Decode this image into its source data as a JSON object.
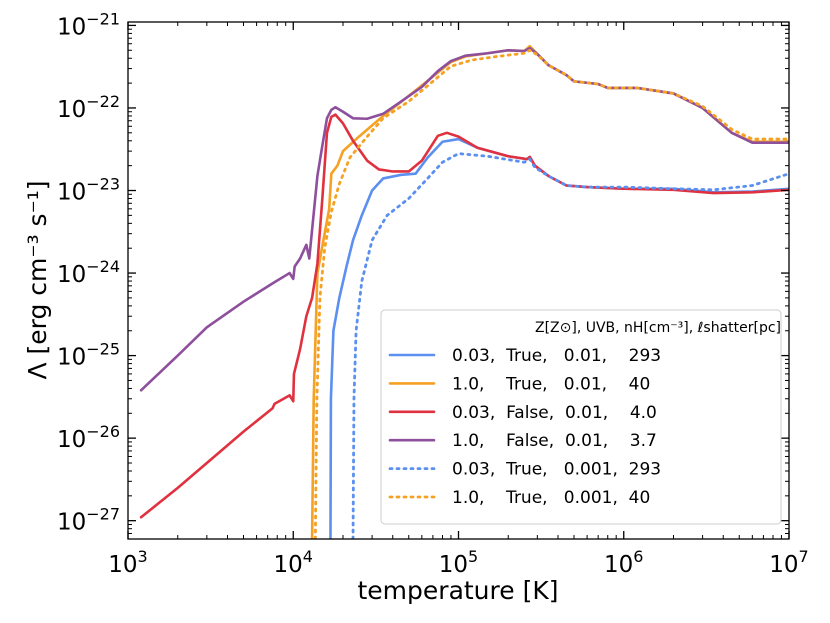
{
  "chart_data": {
    "type": "line",
    "title": "",
    "xlabel": "temperature [K]",
    "ylabel": "Λ [erg cm⁻³ s⁻¹]",
    "xscale": "log",
    "yscale": "log",
    "xlim": [
      1000,
      10000000
    ],
    "ylim": [
      6e-28,
      1.1e-21
    ],
    "x_ticks": [
      {
        "value": 1000,
        "base": "10",
        "exp": "3"
      },
      {
        "value": 10000,
        "base": "10",
        "exp": "4"
      },
      {
        "value": 100000,
        "base": "10",
        "exp": "5"
      },
      {
        "value": 1000000,
        "base": "10",
        "exp": "6"
      },
      {
        "value": 10000000,
        "base": "10",
        "exp": "7"
      }
    ],
    "y_ticks": [
      {
        "value": 1e-27,
        "base": "10",
        "exp": "−27"
      },
      {
        "value": 1e-26,
        "base": "10",
        "exp": "−26"
      },
      {
        "value": 1e-25,
        "base": "10",
        "exp": "−25"
      },
      {
        "value": 1e-24,
        "base": "10",
        "exp": "−24"
      },
      {
        "value": 1e-23,
        "base": "10",
        "exp": "−23"
      },
      {
        "value": 1e-22,
        "base": "10",
        "exp": "−22"
      },
      {
        "value": 1e-21,
        "base": "10",
        "exp": "−21"
      }
    ],
    "legend": {
      "position": "lower-right",
      "title": "Z[Z⊙],  UVB,  nH[cm⁻³], ℓshatter[pc]"
    },
    "series": [
      {
        "name": "0.03,  True,   0.01,    293",
        "color": "#5b8ff0",
        "dash": "solid",
        "points": [
          [
            16800,
            6e-28
          ],
          [
            16900,
            3e-26
          ],
          [
            17500,
            2e-25
          ],
          [
            19000,
            5e-25
          ],
          [
            21000,
            1.2e-24
          ],
          [
            23000,
            2.5e-24
          ],
          [
            26000,
            5e-24
          ],
          [
            30000,
            1e-23
          ],
          [
            35000,
            1.4e-23
          ],
          [
            45000,
            1.55e-23
          ],
          [
            55000,
            1.6e-23
          ],
          [
            65000,
            2.5e-23
          ],
          [
            80000,
            3.9e-23
          ],
          [
            100000,
            4.2e-23
          ],
          [
            130000,
            3.3e-23
          ],
          [
            200000,
            2.6e-23
          ],
          [
            260000,
            2.4e-23
          ],
          [
            270000,
            2.55e-23
          ],
          [
            290000,
            2e-23
          ],
          [
            350000,
            1.5e-23
          ],
          [
            450000,
            1.15e-23
          ],
          [
            600000,
            1.1e-23
          ],
          [
            1000000,
            1.05e-23
          ],
          [
            2000000,
            1.05e-23
          ],
          [
            3500000,
            9.5e-24
          ],
          [
            6000000,
            9.7e-24
          ],
          [
            10000000,
            1.05e-23
          ]
        ]
      },
      {
        "name": "1.0,    True,   0.01,    40",
        "color": "#f5a123",
        "dash": "solid",
        "points": [
          [
            13000,
            6e-28
          ],
          [
            13300,
            3e-26
          ],
          [
            14000,
            1e-24
          ],
          [
            16500,
            6e-24
          ],
          [
            17000,
            1.6e-23
          ],
          [
            18500,
            2e-23
          ],
          [
            20000,
            3e-23
          ],
          [
            25000,
            4.5e-23
          ],
          [
            35000,
            8e-23
          ],
          [
            50000,
            1.4e-22
          ],
          [
            70000,
            2.4e-22
          ],
          [
            90000,
            3.6e-22
          ],
          [
            110000,
            4.2e-22
          ],
          [
            150000,
            4.6e-22
          ],
          [
            200000,
            5e-22
          ],
          [
            250000,
            4.9e-22
          ],
          [
            270000,
            5.6e-22
          ],
          [
            300000,
            4.5e-22
          ],
          [
            350000,
            3.3e-22
          ],
          [
            450000,
            2.5e-22
          ],
          [
            500000,
            2.1e-22
          ],
          [
            700000,
            1.95e-22
          ],
          [
            800000,
            1.75e-22
          ],
          [
            1200000,
            1.75e-22
          ],
          [
            2000000,
            1.5e-22
          ],
          [
            3000000,
            1e-22
          ],
          [
            4500000,
            5e-23
          ],
          [
            6000000,
            3.9e-23
          ],
          [
            10000000,
            3.9e-23
          ]
        ]
      },
      {
        "name": "0.03,  False,  0.01,    4.0",
        "color": "#e0313f",
        "dash": "solid",
        "points": [
          [
            1200,
            1.1e-27
          ],
          [
            2000,
            2.5e-27
          ],
          [
            3000,
            5e-27
          ],
          [
            5000,
            1.2e-26
          ],
          [
            7500,
            2.3e-26
          ],
          [
            7700,
            2.6e-26
          ],
          [
            9500,
            3.3e-26
          ],
          [
            10000,
            2.8e-26
          ],
          [
            10100,
            6e-26
          ],
          [
            11000,
            1.2e-25
          ],
          [
            12000,
            3e-25
          ],
          [
            13000,
            5e-25
          ],
          [
            14000,
            1.3e-24
          ],
          [
            15000,
            8e-24
          ],
          [
            16000,
            5e-23
          ],
          [
            17000,
            7.8e-23
          ],
          [
            18000,
            8.3e-23
          ],
          [
            20000,
            6.5e-23
          ],
          [
            23000,
            4e-23
          ],
          [
            28000,
            2.3e-23
          ],
          [
            33000,
            1.8e-23
          ],
          [
            40000,
            1.7e-23
          ],
          [
            50000,
            1.7e-23
          ],
          [
            60000,
            2.3e-23
          ],
          [
            75000,
            4.6e-23
          ],
          [
            85000,
            5e-23
          ],
          [
            100000,
            4.5e-23
          ],
          [
            130000,
            3.3e-23
          ],
          [
            200000,
            2.6e-23
          ],
          [
            260000,
            2.4e-23
          ],
          [
            270000,
            2.55e-23
          ],
          [
            290000,
            2e-23
          ],
          [
            350000,
            1.5e-23
          ],
          [
            450000,
            1.15e-23
          ],
          [
            600000,
            1.1e-23
          ],
          [
            1000000,
            1.05e-23
          ],
          [
            2000000,
            1.02e-23
          ],
          [
            3500000,
            9.3e-24
          ],
          [
            6000000,
            9.5e-24
          ],
          [
            10000000,
            1.02e-23
          ]
        ]
      },
      {
        "name": "1.0,    False,  0.01,    3.7",
        "color": "#8e4f9c",
        "dash": "solid",
        "points": [
          [
            1200,
            3.8e-26
          ],
          [
            2000,
            1e-25
          ],
          [
            3000,
            2.2e-25
          ],
          [
            5000,
            4.5e-25
          ],
          [
            7500,
            7.5e-25
          ],
          [
            9500,
            1e-24
          ],
          [
            10000,
            8.5e-25
          ],
          [
            10200,
            1.2e-24
          ],
          [
            11000,
            1.5e-24
          ],
          [
            12000,
            2.2e-24
          ],
          [
            12500,
            1.5e-24
          ],
          [
            14000,
            1.5e-23
          ],
          [
            15000,
            3.5e-23
          ],
          [
            16000,
            7.5e-23
          ],
          [
            17000,
            9.5e-23
          ],
          [
            18000,
            1.02e-22
          ],
          [
            20000,
            9e-23
          ],
          [
            23000,
            7.5e-23
          ],
          [
            28000,
            7.4e-23
          ],
          [
            35000,
            8.5e-23
          ],
          [
            45000,
            1.2e-22
          ],
          [
            60000,
            1.8e-22
          ],
          [
            75000,
            2.8e-22
          ],
          [
            90000,
            3.7e-22
          ],
          [
            110000,
            4.3e-22
          ],
          [
            150000,
            4.6e-22
          ],
          [
            200000,
            5e-22
          ],
          [
            250000,
            4.9e-22
          ],
          [
            270000,
            5.3e-22
          ],
          [
            300000,
            4.5e-22
          ],
          [
            350000,
            3.3e-22
          ],
          [
            450000,
            2.5e-22
          ],
          [
            500000,
            2.1e-22
          ],
          [
            700000,
            1.95e-22
          ],
          [
            800000,
            1.75e-22
          ],
          [
            1200000,
            1.75e-22
          ],
          [
            2000000,
            1.5e-22
          ],
          [
            3000000,
            1e-22
          ],
          [
            4500000,
            5e-23
          ],
          [
            6000000,
            3.8e-23
          ],
          [
            10000000,
            3.8e-23
          ]
        ]
      },
      {
        "name": "0.03,  True,   0.001,  293",
        "color": "#5b8ff0",
        "dash": "dotted",
        "points": [
          [
            23000,
            6e-28
          ],
          [
            23300,
            3e-26
          ],
          [
            24000,
            2e-25
          ],
          [
            26000,
            8e-25
          ],
          [
            30000,
            2.5e-24
          ],
          [
            37000,
            5e-24
          ],
          [
            50000,
            8e-24
          ],
          [
            65000,
            1.4e-23
          ],
          [
            80000,
            2.2e-23
          ],
          [
            100000,
            2.8e-23
          ],
          [
            150000,
            2.6e-23
          ],
          [
            250000,
            2.2e-23
          ],
          [
            270000,
            2.4e-23
          ],
          [
            290000,
            1.9e-23
          ],
          [
            350000,
            1.5e-23
          ],
          [
            450000,
            1.15e-23
          ],
          [
            600000,
            1.1e-23
          ],
          [
            1000000,
            1.1e-23
          ],
          [
            2000000,
            1.05e-23
          ],
          [
            3500000,
            1.02e-23
          ],
          [
            6000000,
            1.15e-23
          ],
          [
            10000000,
            1.6e-23
          ]
        ]
      },
      {
        "name": "1.0,    True,   0.001,  40",
        "color": "#f5a123",
        "dash": "dotted",
        "points": [
          [
            13600,
            6e-28
          ],
          [
            13900,
            3e-26
          ],
          [
            14500,
            5e-25
          ],
          [
            15500,
            2e-24
          ],
          [
            17000,
            5.5e-24
          ],
          [
            19000,
            1.2e-23
          ],
          [
            22000,
            2.5e-23
          ],
          [
            28000,
            4.5e-23
          ],
          [
            35000,
            7.5e-23
          ],
          [
            50000,
            1.2e-22
          ],
          [
            70000,
            2.1e-22
          ],
          [
            90000,
            3.2e-22
          ],
          [
            120000,
            3.8e-22
          ],
          [
            170000,
            4.2e-22
          ],
          [
            250000,
            4.6e-22
          ],
          [
            270000,
            5e-22
          ],
          [
            300000,
            4.4e-22
          ],
          [
            350000,
            3.3e-22
          ],
          [
            450000,
            2.5e-22
          ],
          [
            500000,
            2.1e-22
          ],
          [
            700000,
            1.95e-22
          ],
          [
            800000,
            1.75e-22
          ],
          [
            1200000,
            1.75e-22
          ],
          [
            2000000,
            1.5e-22
          ],
          [
            3000000,
            1.05e-22
          ],
          [
            4500000,
            5.5e-23
          ],
          [
            6000000,
            4.2e-23
          ],
          [
            10000000,
            4.2e-23
          ]
        ]
      }
    ]
  }
}
